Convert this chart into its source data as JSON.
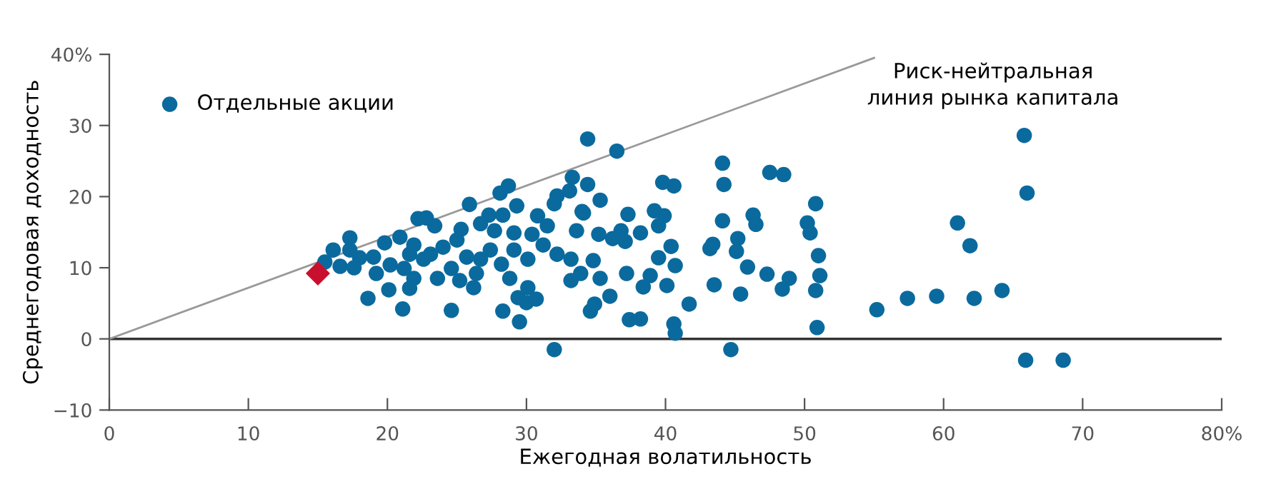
{
  "chart_data": {
    "type": "scatter",
    "xlabel": "Ежегодная волатильность",
    "ylabel": "Среднегодовая доходность",
    "xlim": [
      0,
      80
    ],
    "ylim": [
      -10,
      40
    ],
    "xticks": [
      0,
      10,
      20,
      30,
      40,
      50,
      60,
      70,
      {
        "value": 80,
        "label": "80%"
      }
    ],
    "yticks": [
      {
        "value": -10,
        "label": "−10"
      },
      0,
      10,
      20,
      30,
      {
        "value": 40,
        "label": "40%"
      }
    ],
    "grid": false,
    "legend": "top left",
    "marker": "circle",
    "ref_lines": [
      {
        "axis": "y",
        "value": 0,
        "color": "#333333"
      }
    ],
    "series": [
      {
        "name": "Отдельные акции",
        "color": "#0a6a9e",
        "x": [
          34.4,
          36.5,
          44.1,
          44.2,
          39.8,
          40.6,
          47.5,
          48.5,
          50.8,
          50.2,
          50.4,
          51.0,
          51.1,
          50.8,
          50.9,
          55.2,
          57.4,
          59.5,
          62.2,
          64.2,
          61.0,
          61.9,
          65.8,
          66.0,
          65.9,
          68.6,
          44.7,
          44.1,
          46.3,
          46.5,
          45.2,
          45.1,
          43.4,
          43.2,
          45.9,
          43.5,
          45.4,
          47.3,
          48.9,
          48.4,
          41.7,
          40.6,
          40.7,
          37.4,
          38.2,
          39.5,
          40.4,
          40.7,
          40.1,
          38.9,
          39.2,
          39.9,
          39.5,
          37.3,
          38.2,
          36.8,
          37.1,
          36.2,
          35.2,
          34.4,
          35.3,
          34.1,
          37.2,
          38.4,
          36.0,
          34.6,
          34.9,
          35.3,
          33.9,
          34.8,
          28.7,
          28.1,
          25.9,
          29.3,
          27.3,
          28.3,
          33.3,
          32.2,
          32.0,
          33.1,
          34.0,
          22.2,
          22.8,
          23.4,
          25.3,
          26.7,
          27.7,
          29.1,
          30.8,
          30.4,
          31.5,
          17.3,
          16.1,
          17.3,
          18.0,
          15.5,
          16.6,
          17.6,
          19.8,
          20.9,
          19.0,
          19.2,
          20.2,
          21.6,
          21.2,
          21.9,
          23.1,
          24.0,
          24.6,
          25.7,
          26.4,
          27.4,
          28.2,
          28.8,
          30.1,
          31.2,
          32.2,
          33.2,
          33.6,
          18.6,
          20.1,
          21.1,
          21.6,
          24.6,
          26.2,
          28.3,
          29.4,
          30.0,
          30.7,
          29.5,
          32.0,
          33.2,
          30.1,
          26.7,
          22.6,
          25.0,
          21.9,
          29.1,
          25.2,
          23.6
        ],
        "values": [
          28.1,
          26.4,
          24.7,
          21.7,
          22.0,
          21.5,
          23.4,
          23.1,
          19.0,
          16.3,
          14.9,
          11.7,
          8.9,
          6.8,
          1.6,
          4.1,
          5.7,
          6.0,
          5.7,
          6.8,
          16.3,
          13.1,
          28.6,
          20.5,
          -3.0,
          -3.0,
          -1.5,
          16.6,
          17.4,
          16.1,
          14.1,
          12.3,
          13.3,
          12.7,
          10.1,
          7.6,
          6.3,
          9.1,
          8.5,
          7.0,
          4.9,
          2.1,
          0.8,
          2.7,
          2.8,
          11.4,
          13.0,
          10.3,
          7.5,
          8.9,
          18.0,
          17.3,
          15.9,
          17.5,
          14.9,
          15.2,
          13.7,
          14.1,
          14.7,
          21.7,
          19.5,
          17.7,
          9.2,
          7.3,
          6.0,
          3.9,
          4.9,
          8.5,
          9.2,
          11.0,
          21.5,
          20.5,
          18.9,
          18.7,
          17.4,
          17.4,
          22.7,
          20.1,
          19.0,
          20.8,
          17.9,
          16.9,
          17.0,
          15.9,
          15.4,
          16.2,
          15.2,
          14.9,
          17.3,
          14.7,
          15.9,
          14.2,
          12.5,
          12.5,
          11.4,
          10.8,
          10.2,
          10.0,
          13.5,
          14.3,
          11.5,
          9.2,
          10.4,
          11.9,
          9.9,
          8.5,
          11.9,
          12.9,
          9.9,
          11.5,
          9.2,
          12.5,
          10.5,
          8.5,
          11.2,
          13.2,
          11.9,
          11.2,
          15.2,
          5.7,
          6.9,
          4.2,
          7.1,
          4.0,
          7.2,
          3.9,
          5.8,
          5.1,
          5.6,
          2.4,
          -1.5,
          8.2,
          7.2,
          11.2,
          11.2,
          13.9,
          13.2,
          12.5,
          8.2,
          8.5
        ]
      },
      {
        "marker": "diamond",
        "color": "#c8102e",
        "x": [
          15.0
        ],
        "values": [
          9.2
        ]
      },
      {
        "name": "Риск-нейтральная\nлиния рынка капитала",
        "type": "line",
        "marker": "none",
        "line_style": "solid",
        "color": "#999999",
        "x": [
          0,
          55
        ],
        "values": [
          0,
          39.5
        ]
      }
    ]
  }
}
